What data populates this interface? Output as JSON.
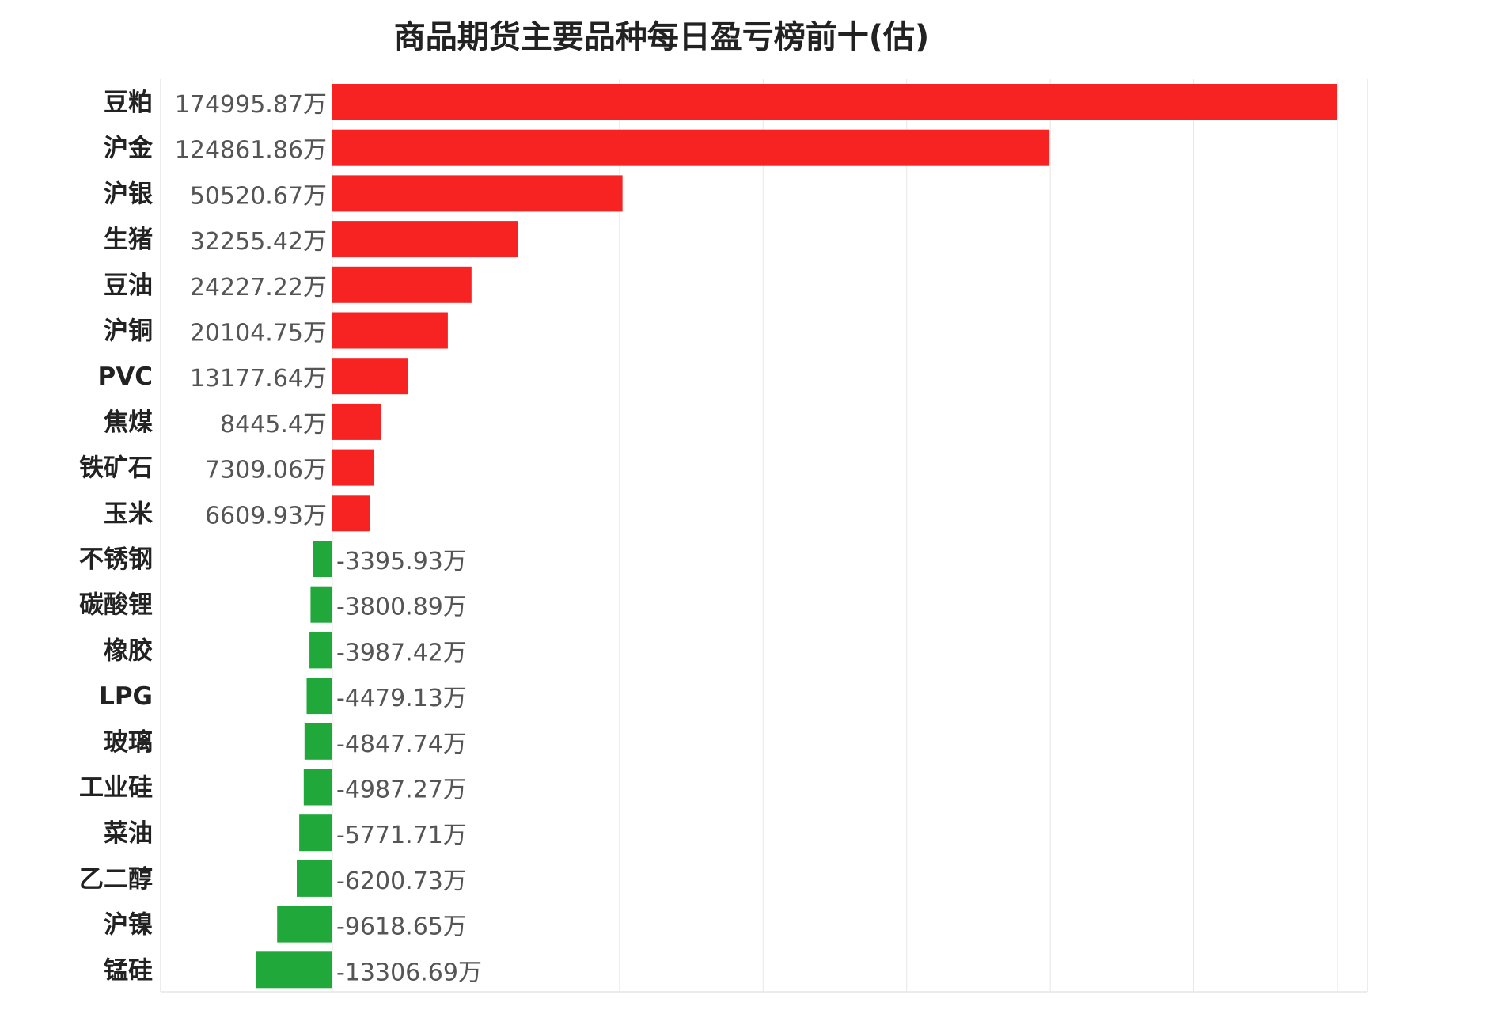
{
  "chart_data": {
    "type": "bar",
    "orientation": "horizontal",
    "title": "商品期货主要品种每日盈亏榜前十(估)",
    "unit_suffix": "万",
    "grid": true,
    "categories": [
      "豆粕",
      "沪金",
      "沪银",
      "生猪",
      "豆油",
      "沪铜",
      "PVC",
      "焦煤",
      "铁矿石",
      "玉米",
      "不锈钢",
      "碳酸锂",
      "橡胶",
      "LPG",
      "玻璃",
      "工业硅",
      "菜油",
      "乙二醇",
      "沪镍",
      "锰硅"
    ],
    "values": [
      174995.87,
      124861.86,
      50520.67,
      32255.42,
      24227.22,
      20104.75,
      13177.64,
      8445.4,
      7309.06,
      6609.93,
      -3395.93,
      -3800.89,
      -3987.42,
      -4479.13,
      -4847.74,
      -4987.27,
      -5771.71,
      -6200.73,
      -9618.65,
      -13306.69
    ],
    "value_labels": [
      "174995.87万",
      "124861.86万",
      "50520.67万",
      "32255.42万",
      "24227.22万",
      "20104.75万",
      "13177.64万",
      "8445.4万",
      "7309.06万",
      "6609.93万",
      "-3395.93万",
      "-3800.89万",
      "-3987.42万",
      "-4479.13万",
      "-4847.74万",
      "-4987.27万",
      "-5771.71万",
      "-6200.73万",
      "-9618.65万",
      "-13306.69万"
    ],
    "xlim": [
      -30000,
      180000
    ],
    "colors": {
      "positive": "#f72323",
      "negative": "#20a83a"
    }
  }
}
